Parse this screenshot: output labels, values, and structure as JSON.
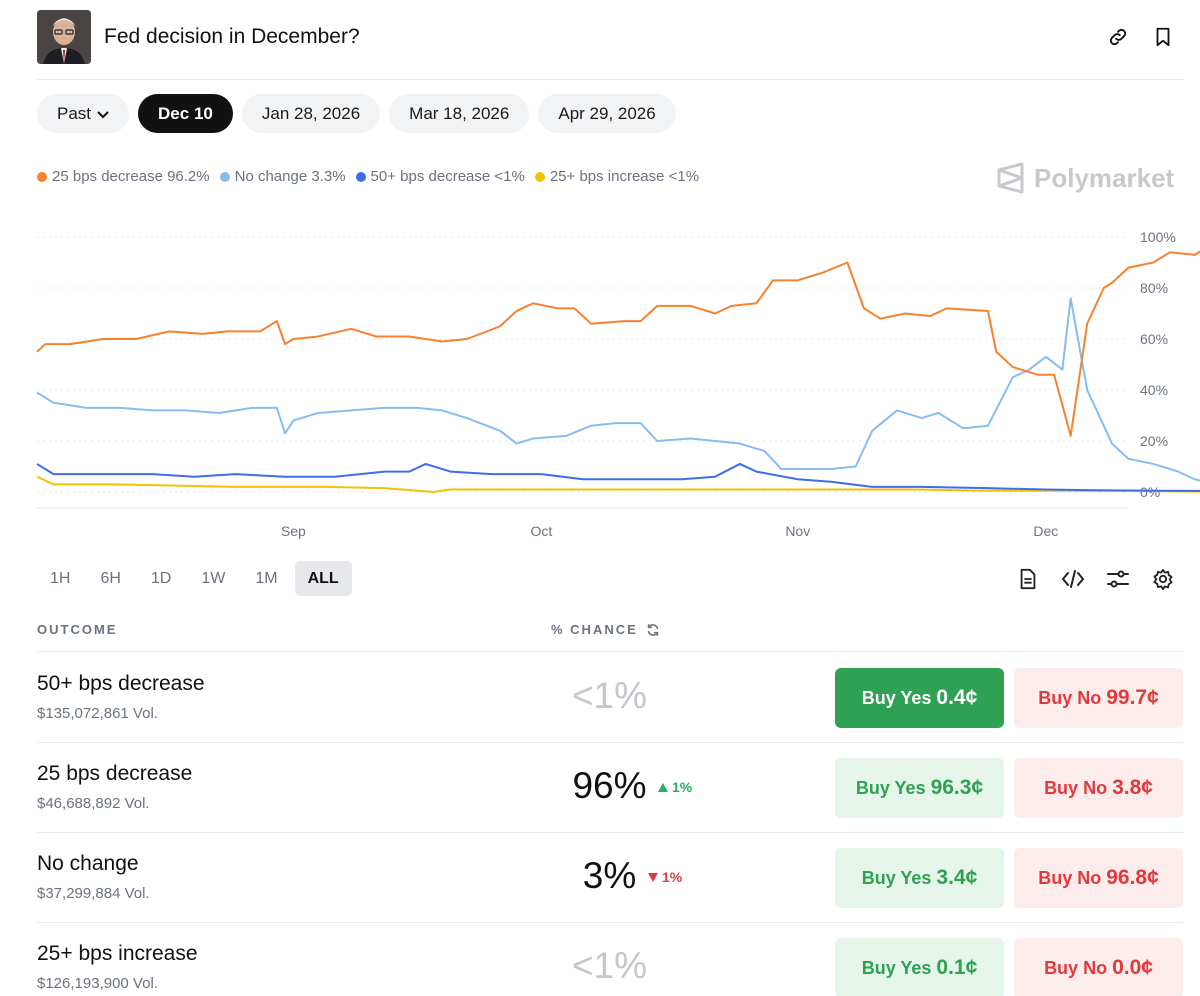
{
  "header": {
    "title": "Fed decision in December?",
    "link_icon": "link-icon",
    "bookmark_icon": "bookmark-icon"
  },
  "date_tabs": {
    "past_label": "Past",
    "items": [
      "Dec 10",
      "Jan 28, 2026",
      "Mar 18, 2026",
      "Apr 29, 2026"
    ],
    "active": "Dec 10"
  },
  "legend": [
    {
      "label": "25 bps decrease 96.2%",
      "color": "#f7822d"
    },
    {
      "label": "No change 3.3%",
      "color": "#86bdf0"
    },
    {
      "label": "50+ bps decrease <1%",
      "color": "#3d6ee8"
    },
    {
      "label": "25+ bps increase <1%",
      "color": "#f5c200"
    }
  ],
  "brand": "Polymarket",
  "chart_data": {
    "type": "line",
    "x_ticks": [
      "Sep",
      "Oct",
      "Nov",
      "Dec"
    ],
    "y_ticks": [
      "100%",
      "80%",
      "60%",
      "40%",
      "20%",
      "0%"
    ],
    "ylim": [
      0,
      100
    ],
    "grid": true,
    "x_start": "Aug 1",
    "x_end": "Dec 9",
    "series": [
      {
        "name": "25 bps decrease",
        "color": "#f7822d",
        "points": [
          [
            "Aug 1",
            55
          ],
          [
            "Aug 2",
            58
          ],
          [
            "Aug 5",
            58
          ],
          [
            "Aug 9",
            60
          ],
          [
            "Aug 13",
            60
          ],
          [
            "Aug 17",
            63
          ],
          [
            "Aug 21",
            62
          ],
          [
            "Aug 24",
            63
          ],
          [
            "Aug 28",
            63
          ],
          [
            "Aug 30",
            67
          ],
          [
            "Aug 31",
            58
          ],
          [
            "Sep 1",
            60
          ],
          [
            "Sep 4",
            61
          ],
          [
            "Sep 8",
            64
          ],
          [
            "Sep 11",
            61
          ],
          [
            "Sep 15",
            61
          ],
          [
            "Sep 19",
            59
          ],
          [
            "Sep 22",
            60
          ],
          [
            "Sep 26",
            65
          ],
          [
            "Sep 28",
            71
          ],
          [
            "Sep 30",
            74
          ],
          [
            "Oct 3",
            72
          ],
          [
            "Oct 5",
            72
          ],
          [
            "Oct 7",
            66
          ],
          [
            "Oct 11",
            67
          ],
          [
            "Oct 13",
            67
          ],
          [
            "Oct 15",
            73
          ],
          [
            "Oct 19",
            73
          ],
          [
            "Oct 22",
            70
          ],
          [
            "Oct 24",
            73
          ],
          [
            "Oct 27",
            74
          ],
          [
            "Oct 29",
            83
          ],
          [
            "Nov 1",
            83
          ],
          [
            "Nov 4",
            86
          ],
          [
            "Nov 7",
            90
          ],
          [
            "Nov 9",
            72
          ],
          [
            "Nov 11",
            68
          ],
          [
            "Nov 14",
            70
          ],
          [
            "Nov 17",
            69
          ],
          [
            "Nov 19",
            72
          ],
          [
            "Nov 24",
            71
          ],
          [
            "Nov 25",
            55
          ],
          [
            "Nov 27",
            49
          ],
          [
            "Nov 30",
            46
          ],
          [
            "Dec 2",
            46
          ],
          [
            "Dec 4",
            22
          ],
          [
            "Dec 6",
            66
          ],
          [
            "Dec 8",
            80
          ],
          [
            "Dec 9",
            82
          ],
          [
            "Dec 11",
            88
          ],
          [
            "Dec 14",
            90
          ],
          [
            "Dec 16",
            94
          ],
          [
            "Dec 19",
            93
          ],
          [
            "Dec 20",
            95
          ],
          [
            "Dec 21",
            96.2
          ]
        ]
      },
      {
        "name": "No change",
        "color": "#86bdf0",
        "points": [
          [
            "Aug 1",
            39
          ],
          [
            "Aug 3",
            35
          ],
          [
            "Aug 7",
            33
          ],
          [
            "Aug 11",
            33
          ],
          [
            "Aug 15",
            32
          ],
          [
            "Aug 19",
            32
          ],
          [
            "Aug 23",
            31
          ],
          [
            "Aug 27",
            33
          ],
          [
            "Aug 30",
            33
          ],
          [
            "Aug 31",
            23
          ],
          [
            "Sep 1",
            28
          ],
          [
            "Sep 4",
            31
          ],
          [
            "Sep 8",
            32
          ],
          [
            "Sep 12",
            33
          ],
          [
            "Sep 16",
            33
          ],
          [
            "Sep 19",
            32
          ],
          [
            "Sep 22",
            29
          ],
          [
            "Sep 26",
            24
          ],
          [
            "Sep 28",
            19
          ],
          [
            "Sep 30",
            21
          ],
          [
            "Oct 4",
            22
          ],
          [
            "Oct 7",
            26
          ],
          [
            "Oct 10",
            27
          ],
          [
            "Oct 13",
            27
          ],
          [
            "Oct 15",
            20
          ],
          [
            "Oct 19",
            21
          ],
          [
            "Oct 22",
            20
          ],
          [
            "Oct 25",
            19
          ],
          [
            "Oct 28",
            16
          ],
          [
            "Oct 30",
            9
          ],
          [
            "Nov 2",
            9
          ],
          [
            "Nov 5",
            9
          ],
          [
            "Nov 8",
            10
          ],
          [
            "Nov 10",
            24
          ],
          [
            "Nov 13",
            32
          ],
          [
            "Nov 16",
            29
          ],
          [
            "Nov 18",
            31
          ],
          [
            "Nov 21",
            25
          ],
          [
            "Nov 24",
            26
          ],
          [
            "Nov 27",
            45
          ],
          [
            "Nov 29",
            48
          ],
          [
            "Dec 1",
            53
          ],
          [
            "Dec 3",
            48
          ],
          [
            "Dec 4",
            76
          ],
          [
            "Dec 6",
            40
          ],
          [
            "Dec 7",
            33
          ],
          [
            "Dec 9",
            19
          ],
          [
            "Dec 11",
            13
          ],
          [
            "Dec 14",
            11
          ],
          [
            "Dec 17",
            8
          ],
          [
            "Dec 19",
            5
          ],
          [
            "Dec 21",
            3.3
          ]
        ]
      },
      {
        "name": "50+ bps decrease",
        "color": "#3d6ee8",
        "points": [
          [
            "Aug 1",
            11
          ],
          [
            "Aug 3",
            7
          ],
          [
            "Aug 7",
            7
          ],
          [
            "Aug 15",
            7
          ],
          [
            "Aug 20",
            6
          ],
          [
            "Aug 25",
            7
          ],
          [
            "Aug 31",
            6
          ],
          [
            "Sep 6",
            6
          ],
          [
            "Sep 12",
            8
          ],
          [
            "Sep 15",
            8
          ],
          [
            "Sep 17",
            11
          ],
          [
            "Sep 20",
            8
          ],
          [
            "Sep 25",
            7
          ],
          [
            "Oct 1",
            7
          ],
          [
            "Oct 6",
            5
          ],
          [
            "Oct 12",
            5
          ],
          [
            "Oct 18",
            5
          ],
          [
            "Oct 22",
            6
          ],
          [
            "Oct 25",
            11
          ],
          [
            "Oct 27",
            8
          ],
          [
            "Nov 1",
            5
          ],
          [
            "Nov 5",
            4
          ],
          [
            "Nov 10",
            2
          ],
          [
            "Nov 16",
            2
          ],
          [
            "Nov 24",
            1.5
          ],
          [
            "Dec 1",
            1
          ],
          [
            "Dec 7",
            0.7
          ],
          [
            "Dec 14",
            0.5
          ],
          [
            "Dec 21",
            0.4
          ]
        ]
      },
      {
        "name": "25+ bps increase",
        "color": "#f5c200",
        "points": [
          [
            "Aug 1",
            6
          ],
          [
            "Aug 3",
            3
          ],
          [
            "Aug 10",
            3
          ],
          [
            "Aug 18",
            2.5
          ],
          [
            "Aug 25",
            2
          ],
          [
            "Sep 5",
            2
          ],
          [
            "Sep 12",
            1.5
          ],
          [
            "Sep 18",
            0
          ],
          [
            "Sep 20",
            1
          ],
          [
            "Sep 25",
            1
          ],
          [
            "Oct 5",
            1
          ],
          [
            "Oct 15",
            1
          ],
          [
            "Oct 25",
            1
          ],
          [
            "Nov 5",
            1
          ],
          [
            "Nov 15",
            1
          ],
          [
            "Nov 24",
            0.5
          ],
          [
            "Dec 1",
            0.5
          ],
          [
            "Dec 10",
            0.5
          ],
          [
            "Dec 21",
            0.1
          ]
        ]
      }
    ]
  },
  "ranges": {
    "items": [
      "1H",
      "6H",
      "1D",
      "1W",
      "1M",
      "ALL"
    ],
    "active": "ALL"
  },
  "table": {
    "col_outcome": "OUTCOME",
    "col_chance": "% CHANCE",
    "rows": [
      {
        "name": "50+ bps decrease",
        "volume": "$135,072,861 Vol.",
        "chance": "<1%",
        "delta": "",
        "delta_dir": "",
        "yes_label": "Buy Yes",
        "yes_price": "0.4¢",
        "no_label": "Buy No",
        "no_price": "99.7¢"
      },
      {
        "name": "25 bps decrease",
        "volume": "$46,688,892 Vol.",
        "chance": "96%",
        "delta": "1%",
        "delta_dir": "up",
        "yes_label": "Buy Yes",
        "yes_price": "96.3¢",
        "no_label": "Buy No",
        "no_price": "3.8¢"
      },
      {
        "name": "No change",
        "volume": "$37,299,884 Vol.",
        "chance": "3%",
        "delta": "1%",
        "delta_dir": "down",
        "yes_label": "Buy Yes",
        "yes_price": "3.4¢",
        "no_label": "Buy No",
        "no_price": "96.8¢"
      },
      {
        "name": "25+ bps increase",
        "volume": "$126,193,900 Vol.",
        "chance": "<1%",
        "delta": "",
        "delta_dir": "",
        "yes_label": "Buy Yes",
        "yes_price": "0.1¢",
        "no_label": "Buy No",
        "no_price": "0.0¢"
      }
    ]
  }
}
